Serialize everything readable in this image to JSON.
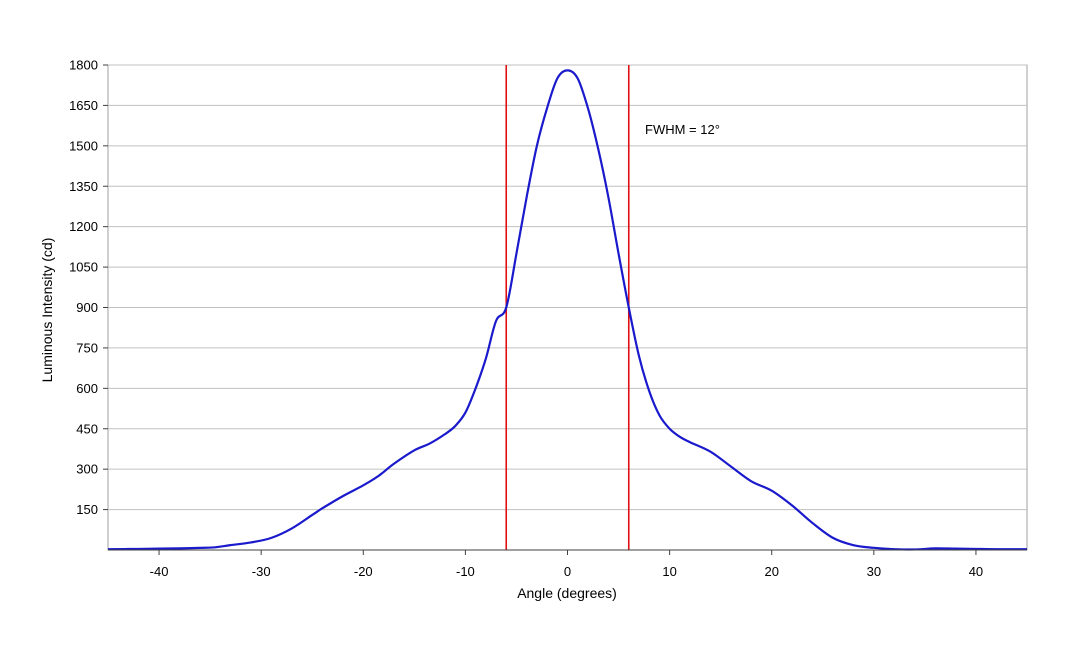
{
  "chart_data": {
    "type": "line",
    "title": "",
    "xlabel": "Angle (degrees)",
    "ylabel": "Luminous Intensity (cd)",
    "xlim": [
      -45,
      45
    ],
    "ylim": [
      0,
      1800
    ],
    "x_ticks": [
      -40,
      -30,
      -20,
      -10,
      0,
      10,
      20,
      30,
      40
    ],
    "x_tick_labels": [
      "-40",
      "-30",
      "-20",
      "-10",
      "0",
      "10",
      "20",
      "30",
      "40"
    ],
    "y_ticks": [
      150,
      300,
      450,
      600,
      750,
      900,
      1050,
      1200,
      1350,
      1500,
      1650,
      1800
    ],
    "y_tick_labels": [
      "150",
      "300",
      "450",
      "600",
      "750",
      "900",
      "1050",
      "1200",
      "1350",
      "1500",
      "1650",
      "1800"
    ],
    "grid": true,
    "legend": "none",
    "colors": {
      "series": "#1a1acc",
      "markers": "#e01010",
      "grid": "#c0c0c0",
      "frame": "#a0a0a0"
    },
    "series": [
      {
        "x": [
          -45,
          -42,
          -40,
          -38,
          -36,
          -34.5,
          -33,
          -31,
          -29,
          -27,
          -25,
          -24,
          -22,
          -20,
          -18.5,
          -17,
          -15,
          -13.5,
          -12,
          -11,
          -10,
          -9,
          -8,
          -7,
          -6,
          -5,
          -4,
          -3,
          -2,
          -1,
          0,
          1,
          2,
          3,
          4,
          5,
          6,
          7,
          8,
          9,
          10,
          11,
          12,
          14,
          16,
          18,
          20,
          22,
          24,
          26,
          28,
          30,
          32,
          34,
          36,
          38,
          40,
          42,
          45
        ],
        "y": [
          3,
          4,
          5,
          6,
          8,
          10,
          18,
          28,
          45,
          80,
          130,
          155,
          200,
          240,
          275,
          320,
          370,
          395,
          430,
          460,
          510,
          600,
          710,
          850,
          900,
          1100,
          1310,
          1500,
          1640,
          1750,
          1780,
          1750,
          1640,
          1490,
          1310,
          1100,
          900,
          720,
          590,
          500,
          450,
          420,
          400,
          365,
          310,
          255,
          220,
          165,
          100,
          45,
          18,
          8,
          3,
          2,
          6,
          5,
          4,
          3,
          3
        ]
      }
    ],
    "vertical_markers": [
      -6,
      6
    ],
    "annotation": "FWHM = 12°"
  }
}
